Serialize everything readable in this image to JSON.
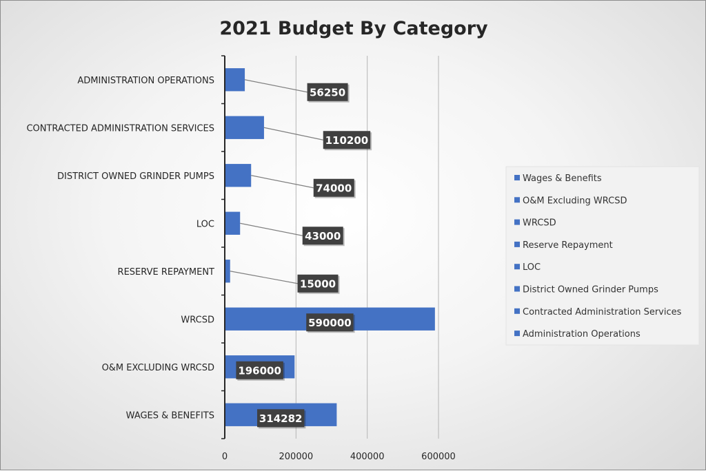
{
  "chart_data": {
    "type": "bar",
    "orientation": "horizontal",
    "title": "2021 Budget By Category",
    "categories": [
      "WAGES & BENEFITS",
      "O&M EXCLUDING WRCSD",
      "WRCSD",
      "RESERVE REPAYMENT",
      "LOC",
      "DISTRICT OWNED GRINDER PUMPS",
      "CONTRACTED ADMINISTRATION SERVICES",
      "ADMINISTRATION OPERATIONS"
    ],
    "values": [
      314282,
      196000,
      590000,
      15000,
      43000,
      74000,
      110200,
      56250
    ],
    "data_labels": [
      "314282",
      "196000",
      "590000",
      "15000",
      "43000",
      "74000",
      "110200",
      "56250"
    ],
    "xlim": [
      0,
      600000
    ],
    "x_ticks": [
      0,
      200000,
      400000,
      600000
    ],
    "x_tick_labels": [
      "0",
      "200000",
      "400000",
      "600000"
    ],
    "grid": true,
    "bar_color": "#4472C4",
    "label_box_color": "#404040",
    "legend": {
      "position": "right",
      "entries": [
        "Wages & Benefits",
        "O&M Excluding WRCSD",
        "WRCSD",
        "Reserve Repayment",
        "LOC",
        "District Owned Grinder Pumps",
        "Contracted Administration Services",
        "Administration Operations"
      ]
    }
  }
}
